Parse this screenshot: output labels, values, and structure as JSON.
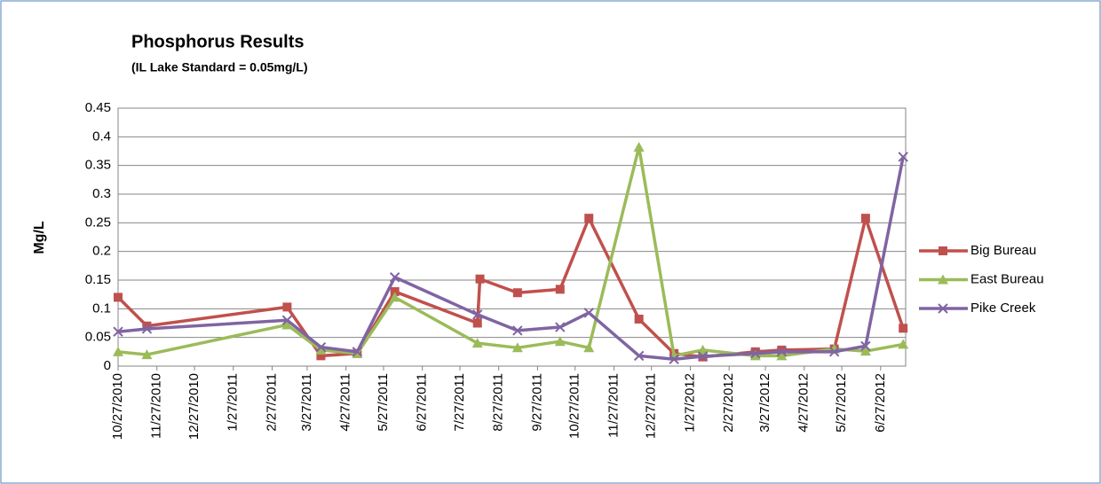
{
  "chart_data": {
    "type": "line",
    "title": "Phosphorus Results",
    "subtitle": "(IL Lake Standard = 0.05mg/L)",
    "y_label": "Mg/L",
    "xlim": [
      "10/27/2010",
      "7/17/2012"
    ],
    "xticks": [
      "10/27/2010",
      "11/27/2010",
      "12/27/2010",
      "1/27/2011",
      "2/27/2011",
      "3/27/2011",
      "4/27/2011",
      "5/27/2011",
      "6/27/2011",
      "7/27/2011",
      "8/27/2011",
      "9/27/2011",
      "10/27/2011",
      "11/27/2011",
      "12/27/2011",
      "1/27/2012",
      "2/27/2012",
      "3/27/2012",
      "4/27/2012",
      "5/27/2012",
      "6/27/2012"
    ],
    "ylim": [
      0,
      0.45
    ],
    "yticks": [
      0,
      0.05,
      0.1,
      0.15,
      0.2,
      0.25,
      0.3,
      0.35,
      0.4,
      0.45
    ],
    "grid": true,
    "legend": "right",
    "series": [
      {
        "name": "Big Bureau",
        "color": "#c0504d",
        "marker": "square",
        "x": [
          "10/27/2010",
          "11/19/2010",
          "3/11/2011",
          "4/7/2011",
          "5/6/2011",
          "6/5/2011",
          "8/10/2011",
          "8/12/2011",
          "9/11/2011",
          "10/15/2011",
          "11/7/2011",
          "12/17/2011",
          "1/14/2012",
          "2/6/2012",
          "3/19/2012",
          "4/9/2012",
          "5/21/2012",
          "6/15/2012",
          "7/15/2012"
        ],
        "values": [
          0.12,
          0.07,
          0.103,
          0.018,
          0.022,
          0.13,
          0.075,
          0.152,
          0.128,
          0.134,
          0.258,
          0.082,
          0.022,
          0.016,
          0.025,
          0.028,
          0.03,
          0.258,
          0.066
        ]
      },
      {
        "name": "East Bureau",
        "color": "#9bbb59",
        "marker": "triangle",
        "x": [
          "10/27/2010",
          "11/19/2010",
          "3/11/2011",
          "4/7/2011",
          "5/6/2011",
          "6/5/2011",
          "8/10/2011",
          "9/11/2011",
          "10/15/2011",
          "11/7/2011",
          "12/17/2011",
          "1/14/2012",
          "2/6/2012",
          "3/19/2012",
          "4/9/2012",
          "5/21/2012",
          "6/15/2012",
          "7/15/2012"
        ],
        "values": [
          0.025,
          0.02,
          0.072,
          0.028,
          0.022,
          0.12,
          0.04,
          0.032,
          0.043,
          0.032,
          0.382,
          0.018,
          0.028,
          0.018,
          0.018,
          0.03,
          0.026,
          0.038
        ]
      },
      {
        "name": "Pike Creek",
        "color": "#8064a2",
        "marker": "x",
        "x": [
          "10/27/2010",
          "11/19/2010",
          "3/11/2011",
          "4/7/2011",
          "5/6/2011",
          "6/5/2011",
          "8/10/2011",
          "9/11/2011",
          "10/15/2011",
          "11/7/2011",
          "12/17/2011",
          "1/14/2012",
          "2/6/2012",
          "3/19/2012",
          "4/9/2012",
          "5/21/2012",
          "6/15/2012",
          "7/15/2012"
        ],
        "values": [
          0.06,
          0.065,
          0.08,
          0.033,
          0.025,
          0.155,
          0.09,
          0.062,
          0.068,
          0.093,
          0.018,
          0.012,
          0.017,
          0.022,
          0.025,
          0.025,
          0.035,
          0.365
        ]
      }
    ]
  }
}
